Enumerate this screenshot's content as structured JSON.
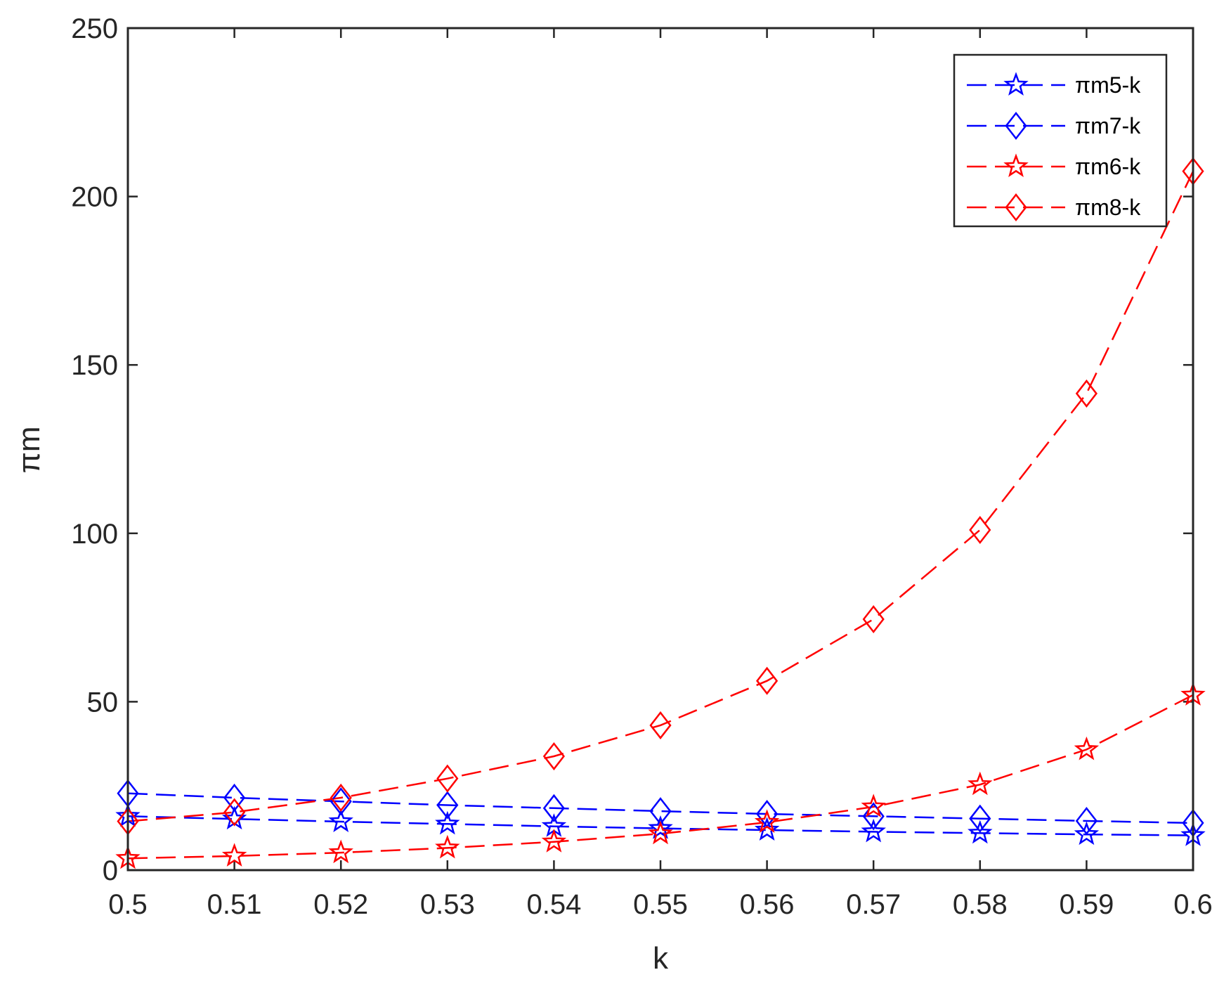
{
  "chart_data": {
    "type": "line",
    "title": "",
    "xlabel": "k",
    "ylabel": "πm",
    "xlim": [
      0.5,
      0.6
    ],
    "ylim": [
      0,
      250
    ],
    "x": [
      0.5,
      0.51,
      0.52,
      0.53,
      0.54,
      0.55,
      0.56,
      0.57,
      0.58,
      0.59,
      0.6
    ],
    "xticks": [
      "0.5",
      "0.51",
      "0.52",
      "0.53",
      "0.54",
      "0.55",
      "0.56",
      "0.57",
      "0.58",
      "0.59",
      "0.6"
    ],
    "yticks": [
      0,
      50,
      100,
      150,
      200,
      250
    ],
    "grid": false,
    "legend_position": "top-right",
    "series": [
      {
        "name": "πm5-k",
        "color": "#0000ff",
        "marker": "star",
        "line": "dashed",
        "values": [
          16,
          15.2,
          14.4,
          13.7,
          13.0,
          12.4,
          11.9,
          11.4,
          11.0,
          10.6,
          10.3
        ]
      },
      {
        "name": "πm7-k",
        "color": "#0000ff",
        "marker": "diamond",
        "line": "dashed",
        "values": [
          22.8,
          21.5,
          20.4,
          19.3,
          18.4,
          17.5,
          16.7,
          16.0,
          15.3,
          14.6,
          14.0
        ]
      },
      {
        "name": "πm6-k",
        "color": "#ff0000",
        "marker": "star",
        "line": "dashed",
        "values": [
          3.5,
          4.2,
          5.2,
          6.6,
          8.4,
          10.8,
          14.2,
          18.8,
          25.4,
          35.8,
          52.0
        ]
      },
      {
        "name": "πm8-k",
        "color": "#ff0000",
        "marker": "diamond",
        "line": "dashed",
        "values": [
          14.5,
          17.2,
          21.5,
          27.2,
          33.8,
          43.0,
          56.2,
          74.5,
          101.0,
          141.5,
          207.5
        ]
      }
    ]
  }
}
